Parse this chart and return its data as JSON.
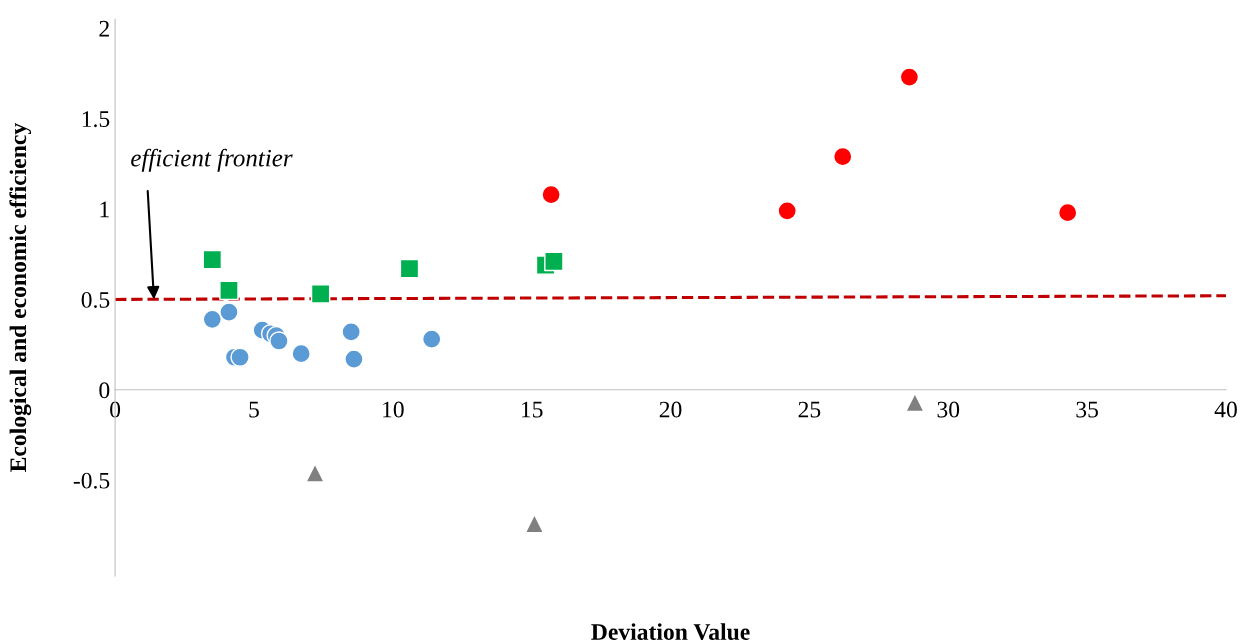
{
  "chart_data": {
    "type": "scatter",
    "xlabel": "Deviation Value",
    "ylabel": "Ecological and economic efficiency",
    "xlim": [
      0,
      40
    ],
    "xticks": [
      0,
      5,
      10,
      15,
      20,
      25,
      30,
      35,
      40
    ],
    "ylim": [
      -1.03,
      2.05
    ],
    "yticks": [
      -0.5,
      0,
      0.5,
      1,
      1.5,
      2
    ],
    "grid": false,
    "legend": false,
    "series": [
      {
        "color": "#ff0000",
        "marker": "circle",
        "x": [
          15.7,
          24.2,
          26.2,
          28.6,
          34.3
        ],
        "values": [
          1.08,
          0.99,
          1.29,
          1.73,
          0.98
        ]
      },
      {
        "color": "#00b050",
        "marker": "square",
        "x": [
          3.5,
          4.1,
          7.4,
          10.6,
          15.5,
          15.8
        ],
        "values": [
          0.72,
          0.55,
          0.53,
          0.67,
          0.69,
          0.71
        ]
      },
      {
        "color": "#5b9bd5",
        "marker": "circle",
        "x": [
          3.5,
          4.1,
          4.3,
          4.5,
          5.3,
          5.6,
          5.8,
          5.9,
          6.7,
          8.5,
          8.6,
          11.4
        ],
        "values": [
          0.39,
          0.43,
          0.18,
          0.18,
          0.33,
          0.31,
          0.3,
          0.27,
          0.2,
          0.32,
          0.17,
          0.28
        ]
      },
      {
        "color": "#808080",
        "marker": "triangle",
        "x": [
          7.2,
          15.1,
          28.8
        ],
        "values": [
          -0.46,
          -0.74,
          -0.07
        ]
      },
      {
        "type": "line",
        "color": "#c00000",
        "line_style": "dashed",
        "marker": "none",
        "x": [
          0,
          40
        ],
        "values": [
          0.5,
          0.52
        ]
      }
    ],
    "annotations": [
      {
        "text": "efficient frontier",
        "x": 1.4,
        "y": 0.5
      }
    ]
  }
}
